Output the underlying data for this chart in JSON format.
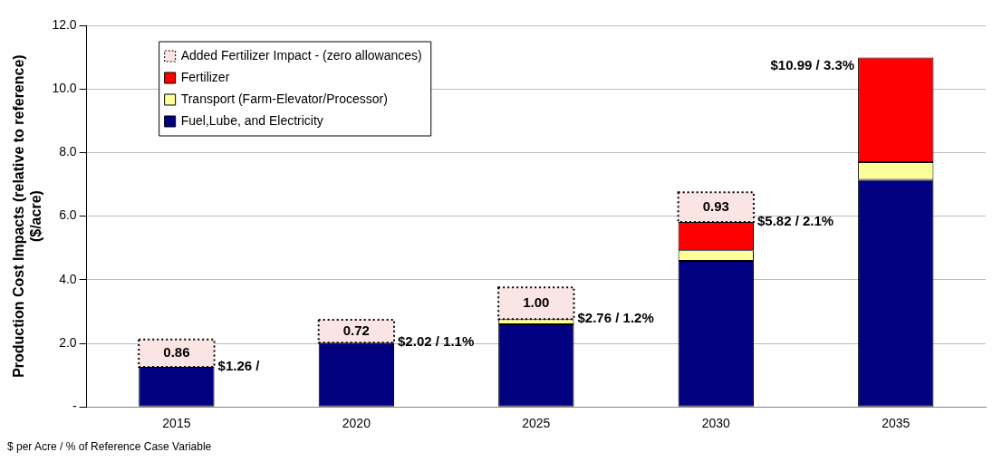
{
  "chart_data": {
    "type": "bar",
    "stacked": true,
    "ylabel": "Production Cost Impacts (relative to reference)\n($/acre)",
    "categories": [
      "2015",
      "2020",
      "2025",
      "2030",
      "2035"
    ],
    "series": [
      {
        "name": "Fuel,Lube, and Electricity",
        "color": "#000080",
        "values": [
          1.26,
          2.02,
          2.6,
          4.59,
          7.14
        ]
      },
      {
        "name": "Transport (Farm-Elevator/Processor)",
        "color": "#ffff99",
        "values": [
          0,
          0,
          0.16,
          0.34,
          0.56
        ]
      },
      {
        "name": "Fertilizer",
        "color": "#ff0000",
        "values": [
          0,
          0,
          0,
          0.89,
          3.29
        ]
      },
      {
        "name": "Added Fertilizer Impact - (zero allowances)",
        "color": "#fbe4e4",
        "line_style": "dotted",
        "values": [
          0.86,
          0.72,
          1.0,
          0.93,
          null
        ],
        "value_labels": [
          "0.86",
          "0.72",
          "1.00",
          "0.93",
          null
        ]
      }
    ],
    "ylim": [
      0,
      12
    ],
    "yticks": [
      {
        "value": 0,
        "label": "-"
      },
      {
        "value": 2,
        "label": "2.0"
      },
      {
        "value": 4,
        "label": "4.0"
      },
      {
        "value": 6,
        "label": "6.0"
      },
      {
        "value": 8,
        "label": "8.0"
      },
      {
        "value": 10,
        "label": "10.0"
      },
      {
        "value": 12,
        "label": "12.0"
      }
    ],
    "grid": "y",
    "legend": "top left",
    "annotations": [
      "$1.26 /",
      "$2.02 / 1.1%",
      "$2.76 / 1.2%",
      "$5.82 / 2.1%",
      "$10.99 / 3.3%",
      "$ per Acre / % of Reference Case Variable"
    ]
  }
}
